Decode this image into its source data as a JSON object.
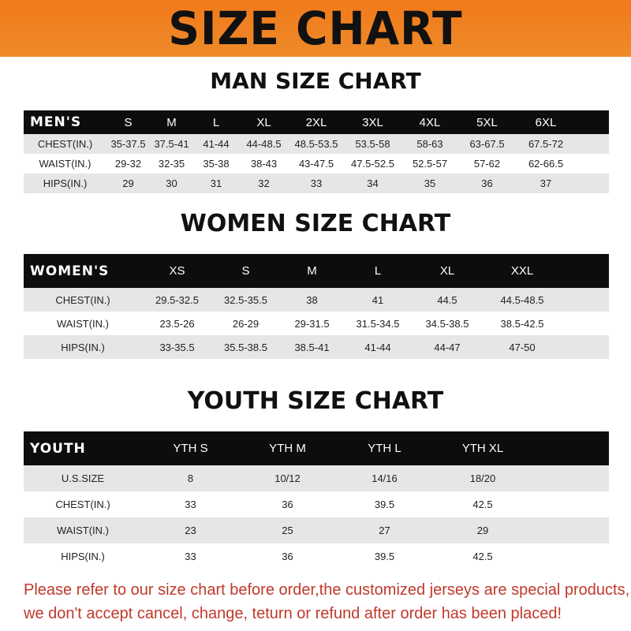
{
  "banner": {
    "title": "SIZE CHART",
    "color": "#f07a1a"
  },
  "men": {
    "title": "MAN SIZE CHART",
    "header": [
      "MEN'S",
      "S",
      "M",
      "L",
      "XL",
      "2XL",
      "3XL",
      "4XL",
      "5XL",
      "6XL"
    ],
    "rows": [
      [
        "CHEST(IN.)",
        "35-37.5",
        "37.5-41",
        "41-44",
        "44-48.5",
        "48.5-53.5",
        "53.5-58",
        "58-63",
        "63-67.5",
        "67.5-72"
      ],
      [
        "WAIST(IN.)",
        "29-32",
        "32-35",
        "35-38",
        "38-43",
        "43-47.5",
        "47.5-52.5",
        "52.5-57",
        "57-62",
        "62-66.5"
      ],
      [
        "HIPS(IN.)",
        "29",
        "30",
        "31",
        "32",
        "33",
        "34",
        "35",
        "36",
        "37"
      ]
    ]
  },
  "women": {
    "title": "WOMEN SIZE CHART",
    "header": [
      "WOMEN'S",
      "XS",
      "S",
      "M",
      "L",
      "XL",
      "XXL"
    ],
    "rows": [
      [
        "CHEST(IN.)",
        "29.5-32.5",
        "32.5-35.5",
        "38",
        "41",
        "44.5",
        "44.5-48.5"
      ],
      [
        "WAIST(IN.)",
        "23.5-26",
        "26-29",
        "29-31.5",
        "31.5-34.5",
        "34.5-38.5",
        "38.5-42.5"
      ],
      [
        "HIPS(IN.)",
        "33-35.5",
        "35.5-38.5",
        "38.5-41",
        "41-44",
        "44-47",
        "47-50"
      ]
    ]
  },
  "youth": {
    "title": "YOUTH SIZE CHART",
    "header": [
      "YOUTH",
      "YTH S",
      "YTH M",
      "YTH L",
      "YTH XL"
    ],
    "rows": [
      [
        "U.S.SIZE",
        "8",
        "10/12",
        "14/16",
        "18/20"
      ],
      [
        "CHEST(IN.)",
        "33",
        "36",
        "39.5",
        "42.5"
      ],
      [
        "WAIST(IN.)",
        "23",
        "25",
        "27",
        "29"
      ],
      [
        "HIPS(IN.)",
        "33",
        "36",
        "39.5",
        "42.5"
      ]
    ]
  },
  "footer": {
    "line1": "Please refer to our size chart before order,the customized jerseys are special products,",
    "line2": "we don't accept cancel, change, teturn or refund after order has been placed!",
    "color": "#c0392b"
  }
}
